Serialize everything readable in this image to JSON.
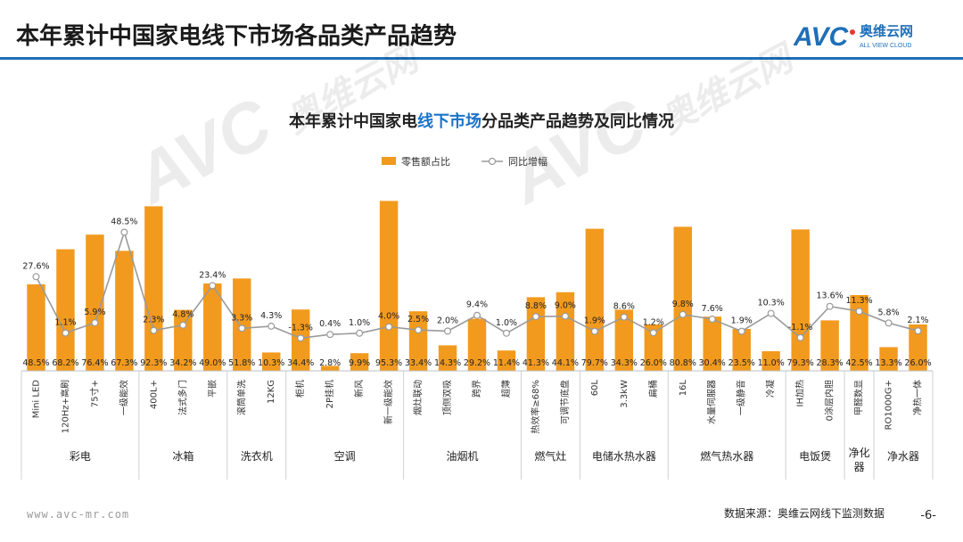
{
  "page": {
    "title": "本年累计中国家电线下市场各品类产品趋势",
    "logo": {
      "mark": "AVC",
      "cn": "奥维云网",
      "en": "ALL VIEW CLOUD"
    },
    "footer": {
      "url": "www.avc-mr.com",
      "source": "数据来源：奥维云网线下监测数据",
      "page_number": "-6-"
    },
    "colors": {
      "bar": "#F29A1E",
      "line": "#9a9a9a",
      "accent": "#1f6fb8",
      "highlight": "#1a73c9"
    }
  },
  "chart_data": {
    "type": "bar",
    "title_parts": [
      {
        "text": "本年累计中国家电",
        "highlight": false
      },
      {
        "text": "线下市场",
        "highlight": true
      },
      {
        "text": "分品类产品趋势及同比情况",
        "highlight": false
      }
    ],
    "legend": {
      "bar": "零售额占比",
      "line": "同比增幅",
      "position": "top-center"
    },
    "categories": [
      "Mini LED",
      "120Hz+高刷",
      "75寸+",
      "一级能效",
      "400L+",
      "法式多门",
      "平嵌",
      "滚筒单洗",
      "12KG",
      "柜机",
      "2P挂机",
      "新风",
      "新一级能效",
      "烟灶联动",
      "顶侧双吸",
      "跨界",
      "超薄",
      "热效率≥68%",
      "可调节底盘",
      "60L",
      "3.3kW",
      "扁桶",
      "16L",
      "水量伺服器",
      "一级静音",
      "冷凝",
      "IH加热",
      "0涂层内胆",
      "甲醛数显",
      "RO1000G+",
      "净热一体"
    ],
    "groups": [
      {
        "name": "彩电",
        "count": 4
      },
      {
        "name": "冰箱",
        "count": 3
      },
      {
        "name": "洗衣机",
        "count": 2
      },
      {
        "name": "空调",
        "count": 4
      },
      {
        "name": "油烟机",
        "count": 4
      },
      {
        "name": "燃气灶",
        "count": 2
      },
      {
        "name": "电储水热水器",
        "count": 3
      },
      {
        "name": "燃气热水器",
        "count": 4
      },
      {
        "name": "电饭煲",
        "count": 2
      },
      {
        "name": "净化器",
        "count": 1
      },
      {
        "name": "净水器",
        "count": 2
      }
    ],
    "series": [
      {
        "name": "零售额占比",
        "type": "bar",
        "values": [
          48.5,
          68.2,
          76.4,
          67.3,
          92.3,
          34.2,
          49.0,
          51.8,
          10.3,
          34.4,
          2.8,
          9.9,
          95.3,
          33.4,
          14.3,
          29.2,
          11.4,
          41.3,
          44.1,
          79.7,
          34.3,
          26.0,
          80.8,
          30.4,
          23.5,
          11.0,
          79.3,
          28.3,
          42.5,
          13.3,
          26.0
        ],
        "labels": [
          "48.5%",
          "68.2%",
          "76.4%",
          "67.3%",
          "92.3%",
          "34.2%",
          "49.0%",
          "51.8%",
          "10.3%",
          "34.4%",
          "2.8%",
          "9.9%",
          "95.3%",
          "33.4%",
          "14.3%",
          "29.2%",
          "11.4%",
          "41.3%",
          "44.1%",
          "79.7%",
          "34.3%",
          "26.0%",
          "80.8%",
          "30.4%",
          "23.5%",
          "11.0%",
          "79.3%",
          "28.3%",
          "42.5%",
          "13.3%",
          "26.0%"
        ]
      },
      {
        "name": "同比增幅",
        "type": "line",
        "values": [
          27.6,
          1.1,
          5.9,
          48.5,
          2.3,
          4.8,
          23.4,
          3.3,
          4.3,
          -1.3,
          0.4,
          1.0,
          4.0,
          2.5,
          2.0,
          9.4,
          1.0,
          8.8,
          9.0,
          1.9,
          8.6,
          1.2,
          9.8,
          7.6,
          1.9,
          10.3,
          -1.1,
          13.6,
          11.3,
          5.8,
          2.1
        ],
        "labels": [
          "27.6%",
          "1.1%",
          "5.9%",
          "48.5%",
          "2.3%",
          "4.8%",
          "23.4%",
          "3.3%",
          "4.3%",
          "-1.3%",
          "0.4%",
          "1.0%",
          "4.0%",
          "2.5%",
          "2.0%",
          "9.4%",
          "1.0%",
          "8.8%",
          "9.0%",
          "1.9%",
          "8.6%",
          "1.2%",
          "9.8%",
          "7.6%",
          "1.9%",
          "10.3%",
          "-1.1%",
          "13.6%",
          "11.3%",
          "5.8%",
          "2.1%"
        ]
      }
    ],
    "bar_range": [
      0,
      100
    ],
    "line_range": [
      -10,
      55
    ],
    "grid": false
  }
}
